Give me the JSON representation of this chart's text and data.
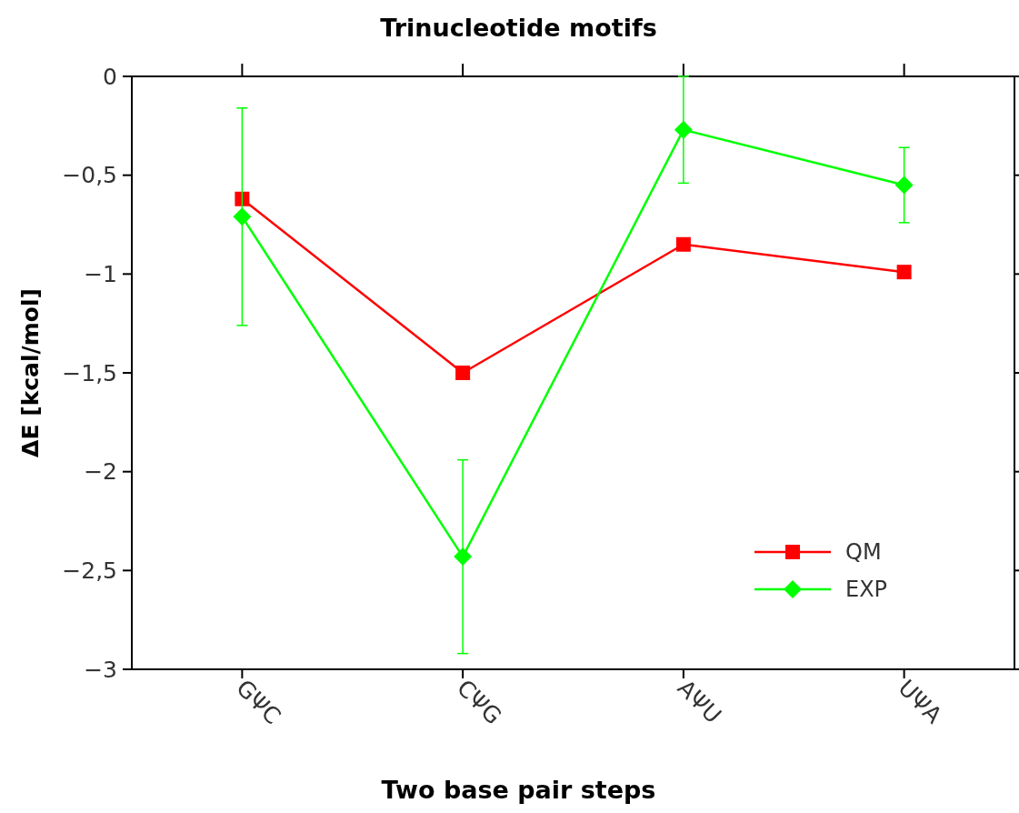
{
  "chart_data": {
    "type": "line",
    "title": "Trinucleotide motifs",
    "xlabel": "Two base pair steps",
    "ylabel": "ΔE [kcal/mol]",
    "categories": [
      "GΨC",
      "CΨG",
      "AΨU",
      "UΨA"
    ],
    "series": [
      {
        "name": "QM",
        "color": "#ff0000",
        "values": [
          -0.62,
          -1.5,
          -0.85,
          -0.99
        ],
        "marker": "square"
      },
      {
        "name": "EXP",
        "color": "#00ff00",
        "values": [
          -0.71,
          -2.43,
          -0.27,
          -0.55
        ],
        "errors": [
          0.55,
          0.49,
          0.27,
          0.19
        ],
        "marker": "diamond"
      }
    ],
    "ylim": [
      -3,
      0
    ],
    "yticks": [
      {
        "value": 0,
        "label": "0"
      },
      {
        "value": -0.5,
        "label": "−0,5"
      },
      {
        "value": -1,
        "label": "−1"
      },
      {
        "value": -1.5,
        "label": "−1,5"
      },
      {
        "value": -2,
        "label": "−2"
      },
      {
        "value": -2.5,
        "label": "−2,5"
      },
      {
        "value": -3,
        "label": "−3"
      }
    ],
    "legend": "bottom right",
    "grid": false,
    "line_style": "solid"
  }
}
